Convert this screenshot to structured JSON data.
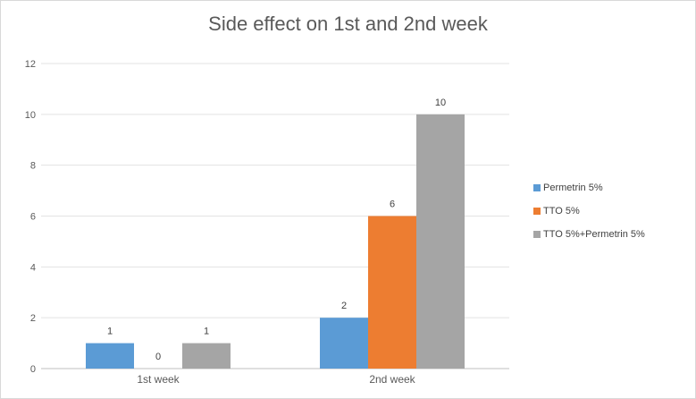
{
  "chart_data": {
    "type": "bar",
    "title": "Side effect on 1st and 2nd week",
    "categories": [
      "1st week",
      "2nd week"
    ],
    "series": [
      {
        "name": "Permetrin 5%",
        "values": [
          1,
          2
        ],
        "color": "#5b9bd5"
      },
      {
        "name": "TTO 5%",
        "values": [
          0,
          6
        ],
        "color": "#ed7d31"
      },
      {
        "name": "TTO 5%+Permetrin 5%",
        "values": [
          1,
          10
        ],
        "color": "#a5a5a5"
      }
    ],
    "ylim": [
      0,
      12
    ],
    "yticks": [
      "0",
      "2",
      "4",
      "6",
      "8",
      "10",
      "12"
    ],
    "data_labels": true,
    "grid": true,
    "legend_position": "right"
  }
}
